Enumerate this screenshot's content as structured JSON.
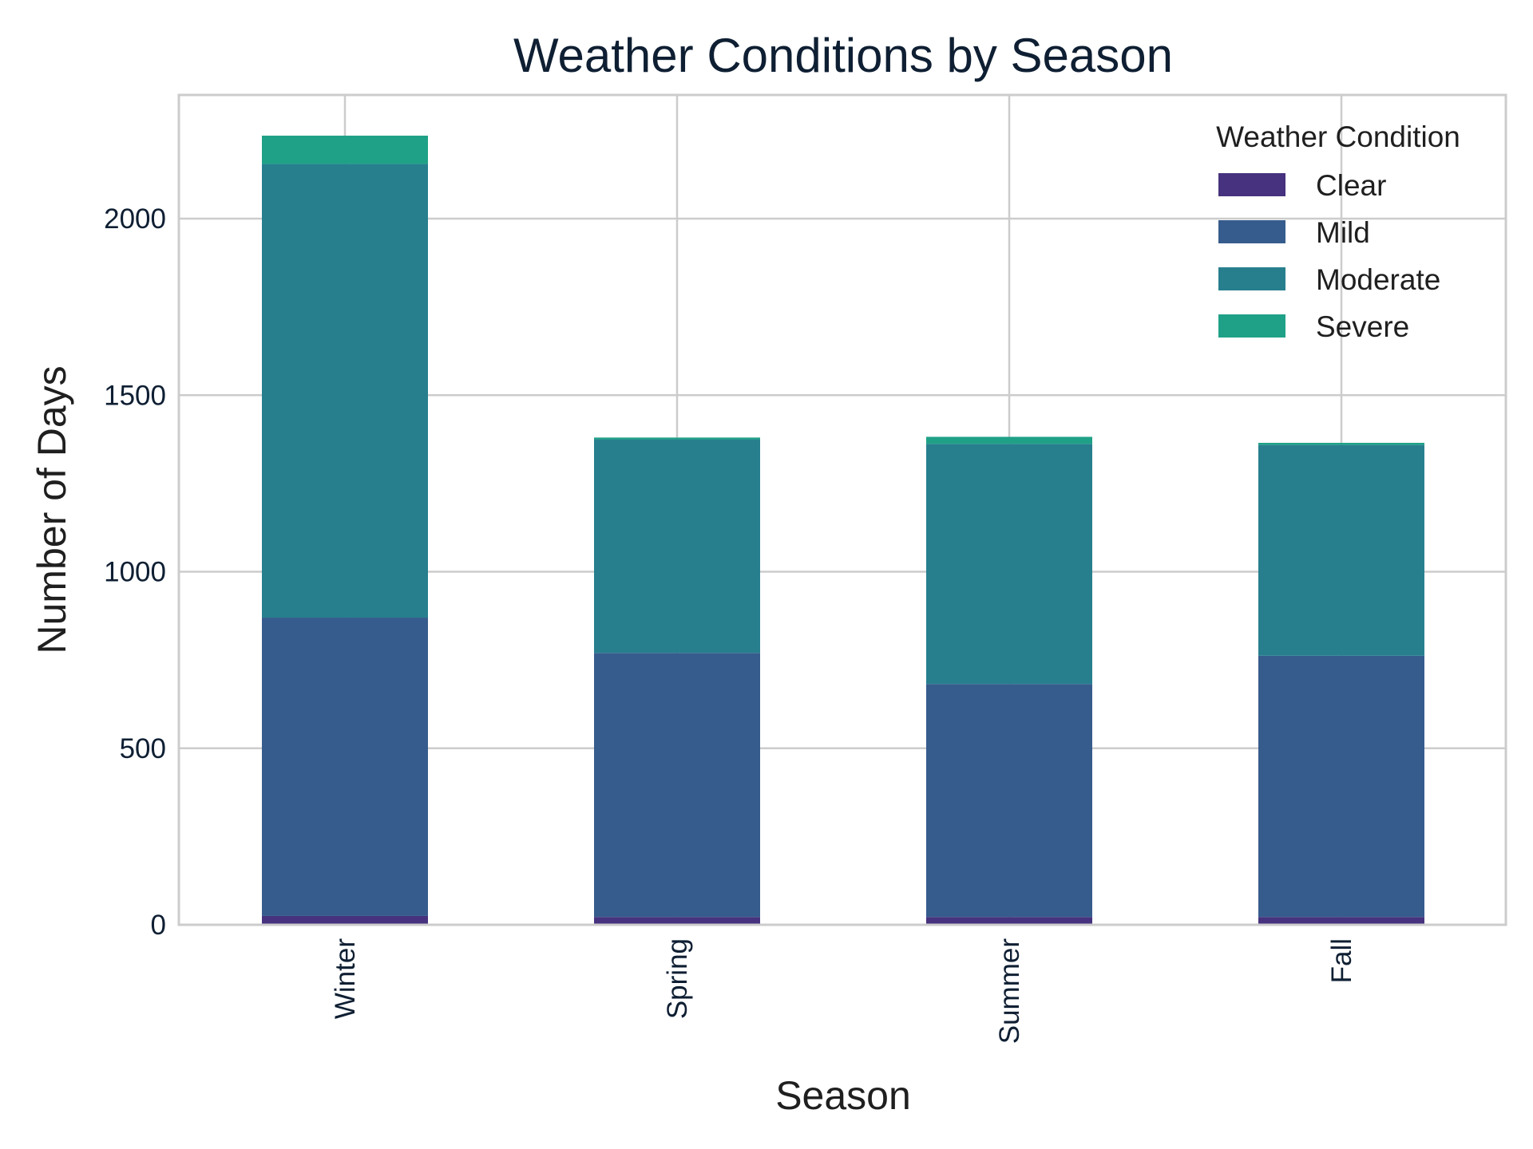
{
  "chart_data": {
    "type": "bar",
    "stacked": true,
    "title": "Weather Conditions by Season",
    "xlabel": "Season",
    "ylabel": "Number of Days",
    "categories": [
      "Winter",
      "Spring",
      "Summer",
      "Fall"
    ],
    "ylim": [
      0,
      2350
    ],
    "yticks": [
      0,
      500,
      1000,
      1500,
      2000
    ],
    "grid": true,
    "legend": {
      "title": "Weather Condition",
      "position": "top-right"
    },
    "series": [
      {
        "name": "Clear",
        "color": "#46327e",
        "values": [
          25,
          22,
          22,
          22
        ]
      },
      {
        "name": "Mild",
        "color": "#365c8d",
        "values": [
          845,
          748,
          660,
          740
        ]
      },
      {
        "name": "Moderate",
        "color": "#277f8e",
        "values": [
          1285,
          605,
          680,
          597
        ]
      },
      {
        "name": "Severe",
        "color": "#1fa187",
        "values": [
          80,
          5,
          20,
          6
        ]
      }
    ]
  }
}
